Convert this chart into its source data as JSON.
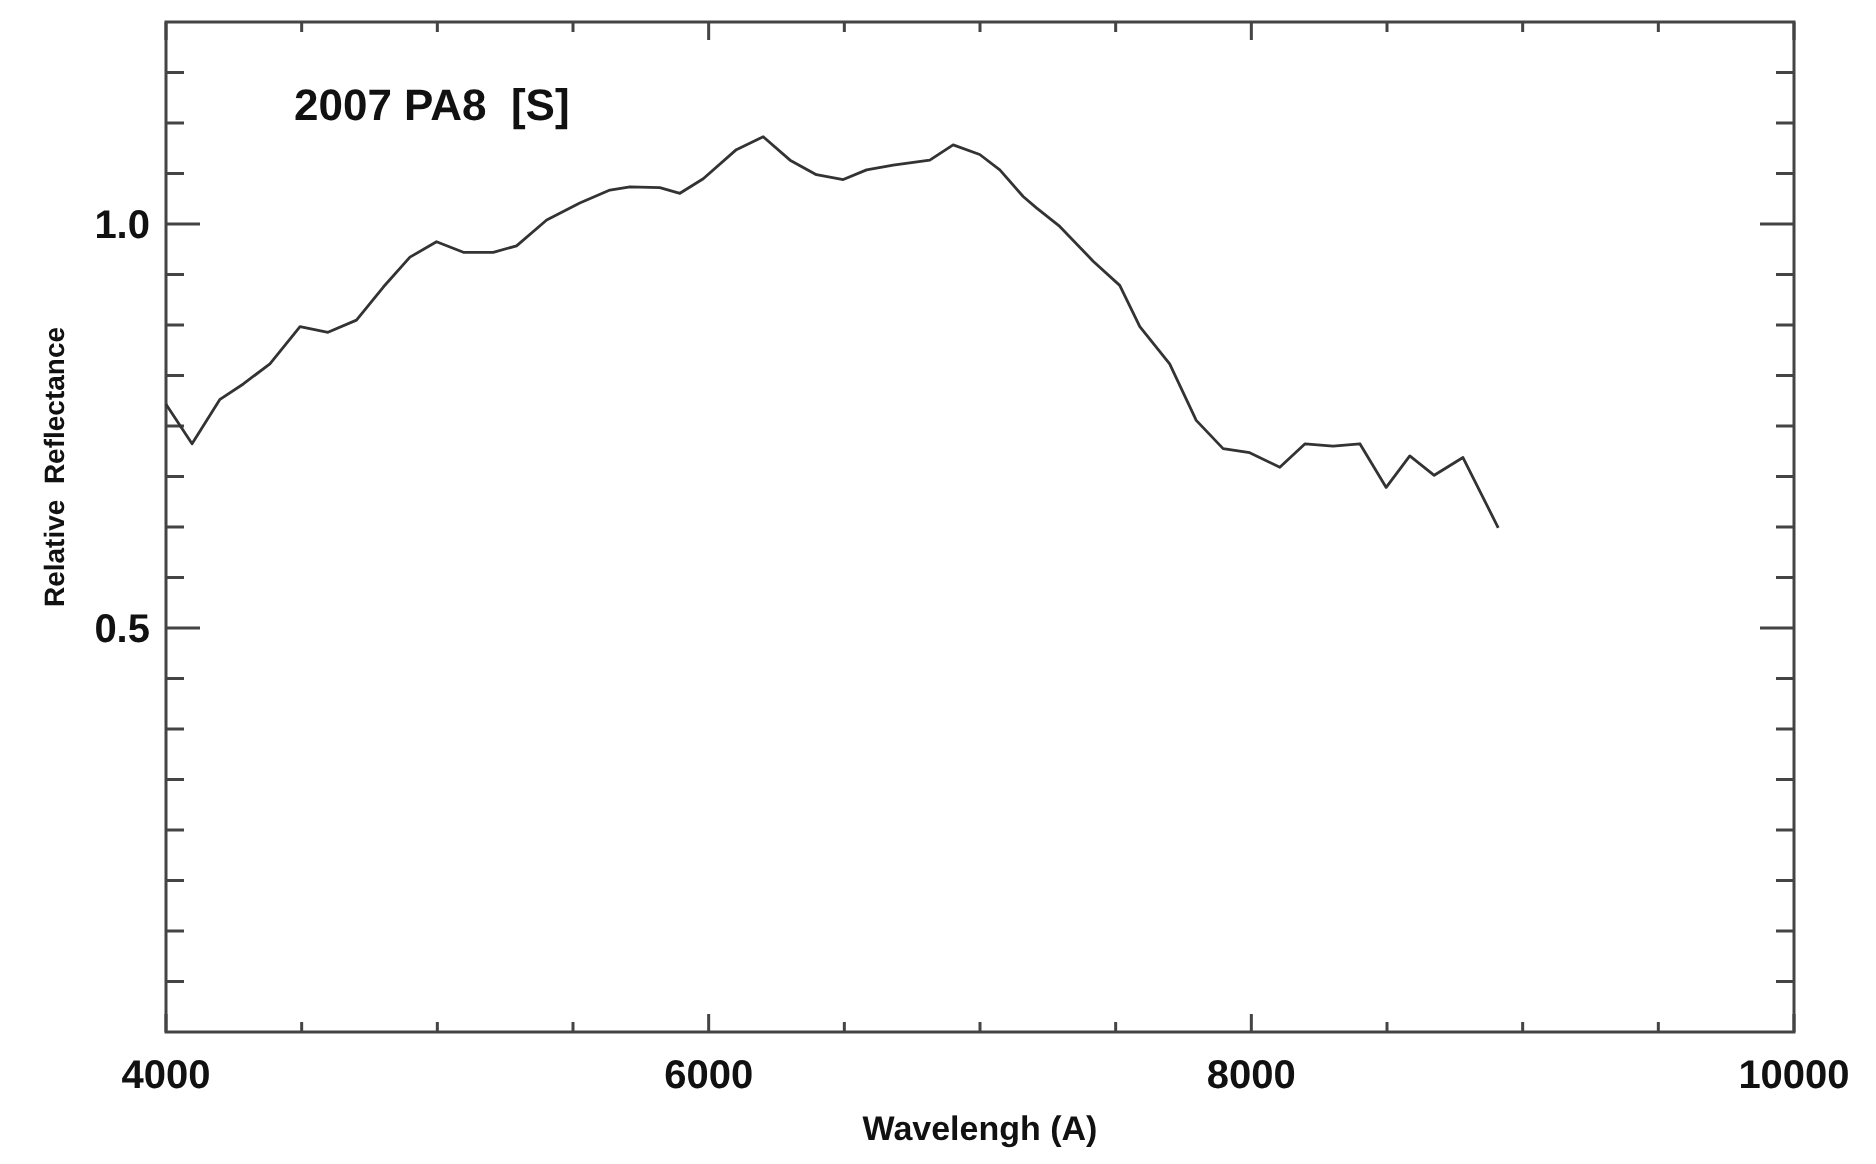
{
  "chart_data": {
    "type": "line",
    "title": "2007 PA8  [S]",
    "xlabel": "Wavelengh (A)",
    "ylabel": "Relative  Reflectance",
    "x": [
      4000,
      4096,
      4199,
      4285,
      4383,
      4494,
      4597,
      4702,
      4801,
      4899,
      4997,
      5096,
      5206,
      5292,
      5403,
      5525,
      5636,
      5710,
      5820,
      5894,
      5980,
      6102,
      6201,
      6300,
      6397,
      6496,
      6582,
      6680,
      6815,
      6901,
      6999,
      7073,
      7159,
      7208,
      7294,
      7417,
      7515,
      7589,
      7699,
      7797,
      7896,
      7994,
      8105,
      8198,
      8301,
      8400,
      8497,
      8584,
      8674,
      8780,
      8910
    ],
    "series": [
      {
        "color": "#333333",
        "values": [
          0.777,
          0.728,
          0.783,
          0.802,
          0.827,
          0.873,
          0.866,
          0.881,
          0.922,
          0.959,
          0.978,
          0.965,
          0.965,
          0.973,
          1.005,
          1.026,
          1.042,
          1.046,
          1.045,
          1.038,
          1.056,
          1.092,
          1.108,
          1.079,
          1.061,
          1.055,
          1.067,
          1.073,
          1.079,
          1.098,
          1.086,
          1.067,
          1.034,
          1.02,
          0.997,
          0.954,
          0.924,
          0.873,
          0.827,
          0.757,
          0.722,
          0.717,
          0.699,
          0.728,
          0.725,
          0.728,
          0.674,
          0.713,
          0.689,
          0.711,
          0.624
        ]
      }
    ],
    "xlim": [
      4000,
      10000
    ],
    "ylim": [
      0,
      1.25
    ],
    "xticks": [
      4000,
      {
        "value": 4500,
        "label": null
      },
      {
        "value": 5000,
        "label": null
      },
      {
        "value": 5500,
        "label": null
      },
      6000,
      {
        "value": 6500,
        "label": null
      },
      {
        "value": 7000,
        "label": null
      },
      {
        "value": 7500,
        "label": null
      },
      8000,
      {
        "value": 8500,
        "label": null
      },
      {
        "value": 9000,
        "label": null
      },
      {
        "value": 9500,
        "label": null
      },
      10000
    ],
    "yticks": [
      {
        "value": 0.0625,
        "label": null
      },
      {
        "value": 0.125,
        "label": null
      },
      {
        "value": 0.1875,
        "label": null
      },
      {
        "value": 0.25,
        "label": null
      },
      {
        "value": 0.3125,
        "label": null
      },
      {
        "value": 0.375,
        "label": null
      },
      {
        "value": 0.4375,
        "label": null
      },
      {
        "value": 0.5,
        "label": "0.5"
      },
      {
        "value": 0.5625,
        "label": null
      },
      {
        "value": 0.625,
        "label": null
      },
      {
        "value": 0.6875,
        "label": null
      },
      {
        "value": 0.75,
        "label": null
      },
      {
        "value": 0.8125,
        "label": null
      },
      {
        "value": 0.875,
        "label": null
      },
      {
        "value": 0.9375,
        "label": null
      },
      {
        "value": 1.0,
        "label": "1.0"
      },
      {
        "value": 1.0625,
        "label": null
      },
      {
        "value": 1.125,
        "label": null
      },
      {
        "value": 1.1875,
        "label": null
      }
    ],
    "grid": false,
    "marker": "none",
    "line_style": "solid"
  }
}
